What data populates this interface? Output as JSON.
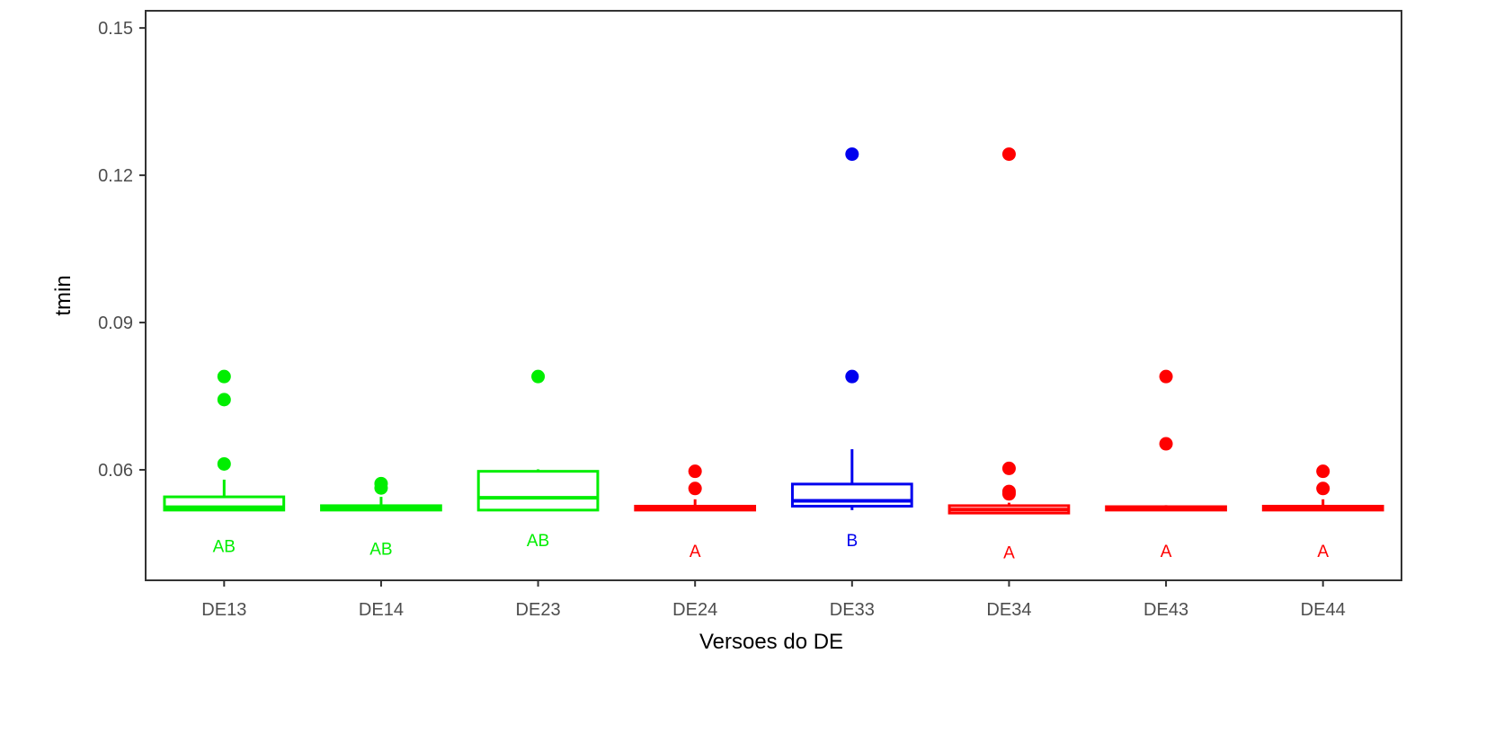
{
  "chart_data": {
    "type": "boxplot",
    "xlabel": "Versoes do DE",
    "ylabel": "tmin",
    "ylim": [
      0.0375,
      0.1535
    ],
    "yticks": [
      0.06,
      0.09,
      0.12,
      0.15
    ],
    "ytick_labels": [
      "0.06",
      "0.09",
      "0.12",
      "0.15"
    ],
    "grid": false,
    "legend": "none",
    "categories": [
      "DE13",
      "DE14",
      "DE23",
      "DE24",
      "DE33",
      "DE34",
      "DE43",
      "DE44"
    ],
    "colors": {
      "A": "#ff0000",
      "AB": "#00ee00",
      "B": "#0000ee"
    },
    "boxes": [
      {
        "category": "DE13",
        "group": "AB",
        "whisker_low": 0.0518,
        "q1": 0.0518,
        "median": 0.0524,
        "q3": 0.0545,
        "whisker_high": 0.058,
        "outliers": [
          0.079,
          0.0743,
          0.0612
        ],
        "label_y": 0.0445
      },
      {
        "category": "DE14",
        "group": "AB",
        "whisker_low": 0.0518,
        "q1": 0.0518,
        "median": 0.0522,
        "q3": 0.0527,
        "whisker_high": 0.0545,
        "outliers": [
          0.0572,
          0.0563
        ],
        "label_y": 0.044
      },
      {
        "category": "DE23",
        "group": "AB",
        "whisker_low": 0.0518,
        "q1": 0.0518,
        "median": 0.0543,
        "q3": 0.0597,
        "whisker_high": 0.0601,
        "outliers": [
          0.079
        ],
        "label_y": 0.0457
      },
      {
        "category": "DE24",
        "group": "A",
        "whisker_low": 0.0518,
        "q1": 0.0518,
        "median": 0.0521,
        "q3": 0.0526,
        "whisker_high": 0.054,
        "outliers": [
          0.0597,
          0.0562
        ],
        "label_y": 0.0435
      },
      {
        "category": "DE33",
        "group": "B",
        "whisker_low": 0.0518,
        "q1": 0.0526,
        "median": 0.0537,
        "q3": 0.0571,
        "whisker_high": 0.0642,
        "outliers": [
          0.1243,
          0.079
        ],
        "label_y": 0.0457
      },
      {
        "category": "DE34",
        "group": "A",
        "whisker_low": 0.0512,
        "q1": 0.0512,
        "median": 0.0519,
        "q3": 0.0527,
        "whisker_high": 0.0533,
        "outliers": [
          0.1243,
          0.0603,
          0.0556,
          0.0551
        ],
        "label_y": 0.0433
      },
      {
        "category": "DE43",
        "group": "A",
        "whisker_low": 0.0518,
        "q1": 0.0518,
        "median": 0.0521,
        "q3": 0.0525,
        "whisker_high": 0.0528,
        "outliers": [
          0.079,
          0.0653
        ],
        "label_y": 0.0435
      },
      {
        "category": "DE44",
        "group": "A",
        "whisker_low": 0.0518,
        "q1": 0.0518,
        "median": 0.0521,
        "q3": 0.0526,
        "whisker_high": 0.054,
        "outliers": [
          0.0597,
          0.0562
        ],
        "label_y": 0.0435
      }
    ]
  }
}
